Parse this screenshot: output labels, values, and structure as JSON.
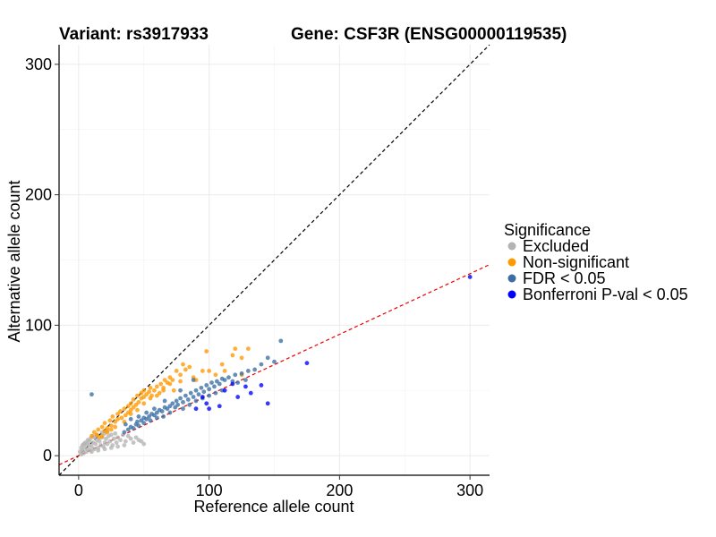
{
  "chart_data": {
    "type": "scatter",
    "title_left": "Variant: rs3917933",
    "title_right": "Gene: CSF3R (ENSG00000119535)",
    "xlabel": "Reference allele count",
    "ylabel": "Alternative allele count",
    "xlim": [
      -15,
      315
    ],
    "ylim": [
      -15,
      315
    ],
    "xticks": [
      0,
      100,
      200,
      300
    ],
    "yticks": [
      0,
      100,
      200,
      300
    ],
    "grid": true,
    "legend": {
      "title": "Significance",
      "placement": "right",
      "entries": [
        {
          "label": "Excluded",
          "color": "#b3b3b3"
        },
        {
          "label": "Non-significant",
          "color": "#ff9900"
        },
        {
          "label": "FDR < 0.05",
          "color": "#3a6ea5"
        },
        {
          "label": "Bonferroni P-val < 0.05",
          "color": "#0000ff"
        }
      ]
    },
    "reference_lines": [
      {
        "kind": "identity",
        "slope": 1,
        "intercept": 0,
        "color": "#000000",
        "style": "dashed"
      },
      {
        "kind": "fit",
        "slope": 0.465,
        "intercept": 0,
        "color": "#ee0000",
        "style": "dashed"
      }
    ],
    "series": [
      {
        "name": "Excluded",
        "color": "#b3b3b3",
        "points": [
          [
            2,
            1
          ],
          [
            3,
            4
          ],
          [
            4,
            2
          ],
          [
            5,
            6
          ],
          [
            6,
            3
          ],
          [
            7,
            5
          ],
          [
            8,
            8
          ],
          [
            9,
            4
          ],
          [
            10,
            7
          ],
          [
            11,
            10
          ],
          [
            12,
            5
          ],
          [
            13,
            9
          ],
          [
            14,
            12
          ],
          [
            15,
            6
          ],
          [
            16,
            11
          ],
          [
            17,
            8
          ],
          [
            18,
            14
          ],
          [
            19,
            7
          ],
          [
            20,
            10
          ],
          [
            21,
            13
          ],
          [
            22,
            9
          ],
          [
            23,
            15
          ],
          [
            24,
            11
          ],
          [
            25,
            16
          ],
          [
            26,
            8
          ],
          [
            27,
            13
          ],
          [
            28,
            17
          ],
          [
            29,
            10
          ],
          [
            30,
            14
          ],
          [
            32,
            12
          ],
          [
            34,
            16
          ],
          [
            36,
            11
          ],
          [
            38,
            15
          ],
          [
            40,
            13
          ],
          [
            42,
            10
          ],
          [
            44,
            14
          ],
          [
            46,
            12
          ],
          [
            48,
            11
          ],
          [
            50,
            9
          ],
          [
            3,
            8
          ],
          [
            5,
            10
          ],
          [
            7,
            12
          ],
          [
            9,
            13
          ],
          [
            11,
            15
          ],
          [
            6,
            9
          ],
          [
            8,
            11
          ],
          [
            12,
            14
          ],
          [
            14,
            16
          ],
          [
            18,
            18
          ],
          [
            20,
            17
          ],
          [
            22,
            19
          ],
          [
            1,
            3
          ],
          [
            2,
            6
          ],
          [
            4,
            9
          ],
          [
            10,
            3
          ],
          [
            15,
            4
          ],
          [
            20,
            5
          ],
          [
            25,
            6
          ],
          [
            30,
            7
          ],
          [
            35,
            8
          ]
        ]
      },
      {
        "name": "Non-significant",
        "color": "#ff9900",
        "points": [
          [
            10,
            15
          ],
          [
            12,
            18
          ],
          [
            14,
            16
          ],
          [
            15,
            20
          ],
          [
            16,
            14
          ],
          [
            18,
            22
          ],
          [
            20,
            19
          ],
          [
            20,
            25
          ],
          [
            22,
            21
          ],
          [
            24,
            27
          ],
          [
            25,
            23
          ],
          [
            26,
            30
          ],
          [
            28,
            26
          ],
          [
            30,
            32
          ],
          [
            30,
            28
          ],
          [
            32,
            34
          ],
          [
            33,
            29
          ],
          [
            35,
            36
          ],
          [
            36,
            31
          ],
          [
            38,
            38
          ],
          [
            38,
            33
          ],
          [
            40,
            40
          ],
          [
            40,
            35
          ],
          [
            42,
            37
          ],
          [
            42,
            43
          ],
          [
            44,
            39
          ],
          [
            45,
            46
          ],
          [
            46,
            41
          ],
          [
            48,
            44
          ],
          [
            48,
            48
          ],
          [
            50,
            45
          ],
          [
            50,
            50
          ],
          [
            52,
            47
          ],
          [
            54,
            49
          ],
          [
            55,
            52
          ],
          [
            56,
            46
          ],
          [
            58,
            50
          ],
          [
            60,
            53
          ],
          [
            62,
            48
          ],
          [
            63,
            55
          ],
          [
            65,
            52
          ],
          [
            66,
            58
          ],
          [
            68,
            56
          ],
          [
            70,
            60
          ],
          [
            72,
            58
          ],
          [
            75,
            65
          ],
          [
            78,
            62
          ],
          [
            80,
            70
          ],
          [
            85,
            68
          ],
          [
            50,
            40
          ],
          [
            45,
            35
          ],
          [
            35,
            26
          ],
          [
            28,
            22
          ],
          [
            22,
            18
          ],
          [
            18,
            15
          ],
          [
            25,
            20
          ],
          [
            40,
            32
          ],
          [
            55,
            44
          ],
          [
            60,
            46
          ],
          [
            65,
            50
          ],
          [
            70,
            55
          ],
          [
            73,
            50
          ],
          [
            78,
            57
          ],
          [
            100,
            65
          ],
          [
            105,
            62
          ],
          [
            112,
            65
          ],
          [
            118,
            77
          ],
          [
            120,
            82
          ],
          [
            125,
            75
          ],
          [
            125,
            62
          ],
          [
            130,
            82
          ],
          [
            110,
            70
          ],
          [
            95,
            65
          ],
          [
            98,
            80
          ],
          [
            90,
            58
          ],
          [
            82,
            66
          ],
          [
            88,
            60
          ]
        ]
      },
      {
        "name": "FDR < 0.05",
        "color": "#3a6ea5",
        "points": [
          [
            10,
            47
          ],
          [
            35,
            18
          ],
          [
            38,
            20
          ],
          [
            40,
            22
          ],
          [
            42,
            21
          ],
          [
            44,
            24
          ],
          [
            45,
            26
          ],
          [
            46,
            23
          ],
          [
            48,
            27
          ],
          [
            50,
            25
          ],
          [
            50,
            29
          ],
          [
            52,
            28
          ],
          [
            54,
            30
          ],
          [
            55,
            27
          ],
          [
            56,
            32
          ],
          [
            58,
            31
          ],
          [
            60,
            33
          ],
          [
            60,
            29
          ],
          [
            62,
            35
          ],
          [
            64,
            34
          ],
          [
            65,
            30
          ],
          [
            66,
            37
          ],
          [
            68,
            36
          ],
          [
            70,
            38
          ],
          [
            70,
            33
          ],
          [
            72,
            40
          ],
          [
            74,
            37
          ],
          [
            75,
            42
          ],
          [
            76,
            39
          ],
          [
            78,
            44
          ],
          [
            80,
            41
          ],
          [
            80,
            36
          ],
          [
            82,
            46
          ],
          [
            84,
            43
          ],
          [
            85,
            39
          ],
          [
            86,
            48
          ],
          [
            88,
            45
          ],
          [
            90,
            42
          ],
          [
            90,
            50
          ],
          [
            92,
            47
          ],
          [
            94,
            52
          ],
          [
            95,
            44
          ],
          [
            96,
            49
          ],
          [
            98,
            54
          ],
          [
            100,
            51
          ],
          [
            100,
            46
          ],
          [
            102,
            56
          ],
          [
            104,
            53
          ],
          [
            105,
            48
          ],
          [
            106,
            57
          ],
          [
            108,
            55
          ],
          [
            110,
            50
          ],
          [
            110,
            59
          ],
          [
            112,
            58
          ],
          [
            115,
            60
          ],
          [
            118,
            57
          ],
          [
            120,
            62
          ],
          [
            122,
            56
          ],
          [
            125,
            63
          ],
          [
            128,
            58
          ],
          [
            130,
            65
          ],
          [
            135,
            66
          ],
          [
            140,
            70
          ],
          [
            145,
            75
          ],
          [
            150,
            72
          ],
          [
            155,
            88
          ],
          [
            88,
            58
          ],
          [
            78,
            50
          ],
          [
            66,
            42
          ],
          [
            58,
            36
          ],
          [
            52,
            33
          ],
          [
            46,
            30
          ],
          [
            40,
            28
          ],
          [
            36,
            24
          ]
        ]
      },
      {
        "name": "Bonferroni P-val < 0.05",
        "color": "#0000ff",
        "points": [
          [
            300,
            137
          ],
          [
            175,
            71
          ],
          [
            145,
            40
          ],
          [
            140,
            54
          ],
          [
            132,
            48
          ],
          [
            128,
            53
          ],
          [
            122,
            45
          ],
          [
            118,
            55
          ],
          [
            112,
            50
          ],
          [
            108,
            38
          ],
          [
            100,
            36
          ],
          [
            98,
            40
          ],
          [
            95,
            45
          ],
          [
            90,
            36
          ]
        ]
      }
    ]
  }
}
